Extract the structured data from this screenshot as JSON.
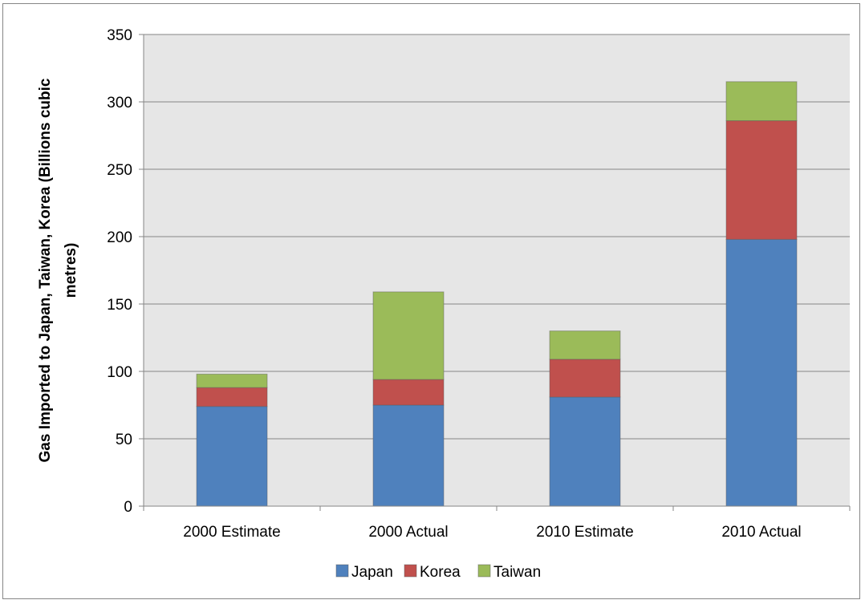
{
  "chart_data": {
    "type": "bar",
    "stacked": true,
    "title": "",
    "xlabel": "",
    "ylabel_lines": [
      "Gas Imported to Japan, Taiwan, Korea (Billions cubic",
      "metres)"
    ],
    "categories": [
      "2000 Estimate",
      "2000 Actual",
      "2010 Estimate",
      "2010 Actual"
    ],
    "ylim": [
      0,
      350
    ],
    "yticks": [
      0,
      50,
      100,
      150,
      200,
      250,
      300,
      350
    ],
    "grid": true,
    "legend_position": "bottom",
    "series": [
      {
        "name": "Japan",
        "color": "#4F81BD",
        "values": [
          74,
          75,
          81,
          198
        ]
      },
      {
        "name": "Korea",
        "color": "#C0504D",
        "values": [
          14,
          19,
          28,
          88
        ]
      },
      {
        "name": "Taiwan",
        "color": "#9BBB59",
        "values": [
          10,
          65,
          21,
          29
        ]
      }
    ],
    "plot_background": "#E6E6E6"
  }
}
